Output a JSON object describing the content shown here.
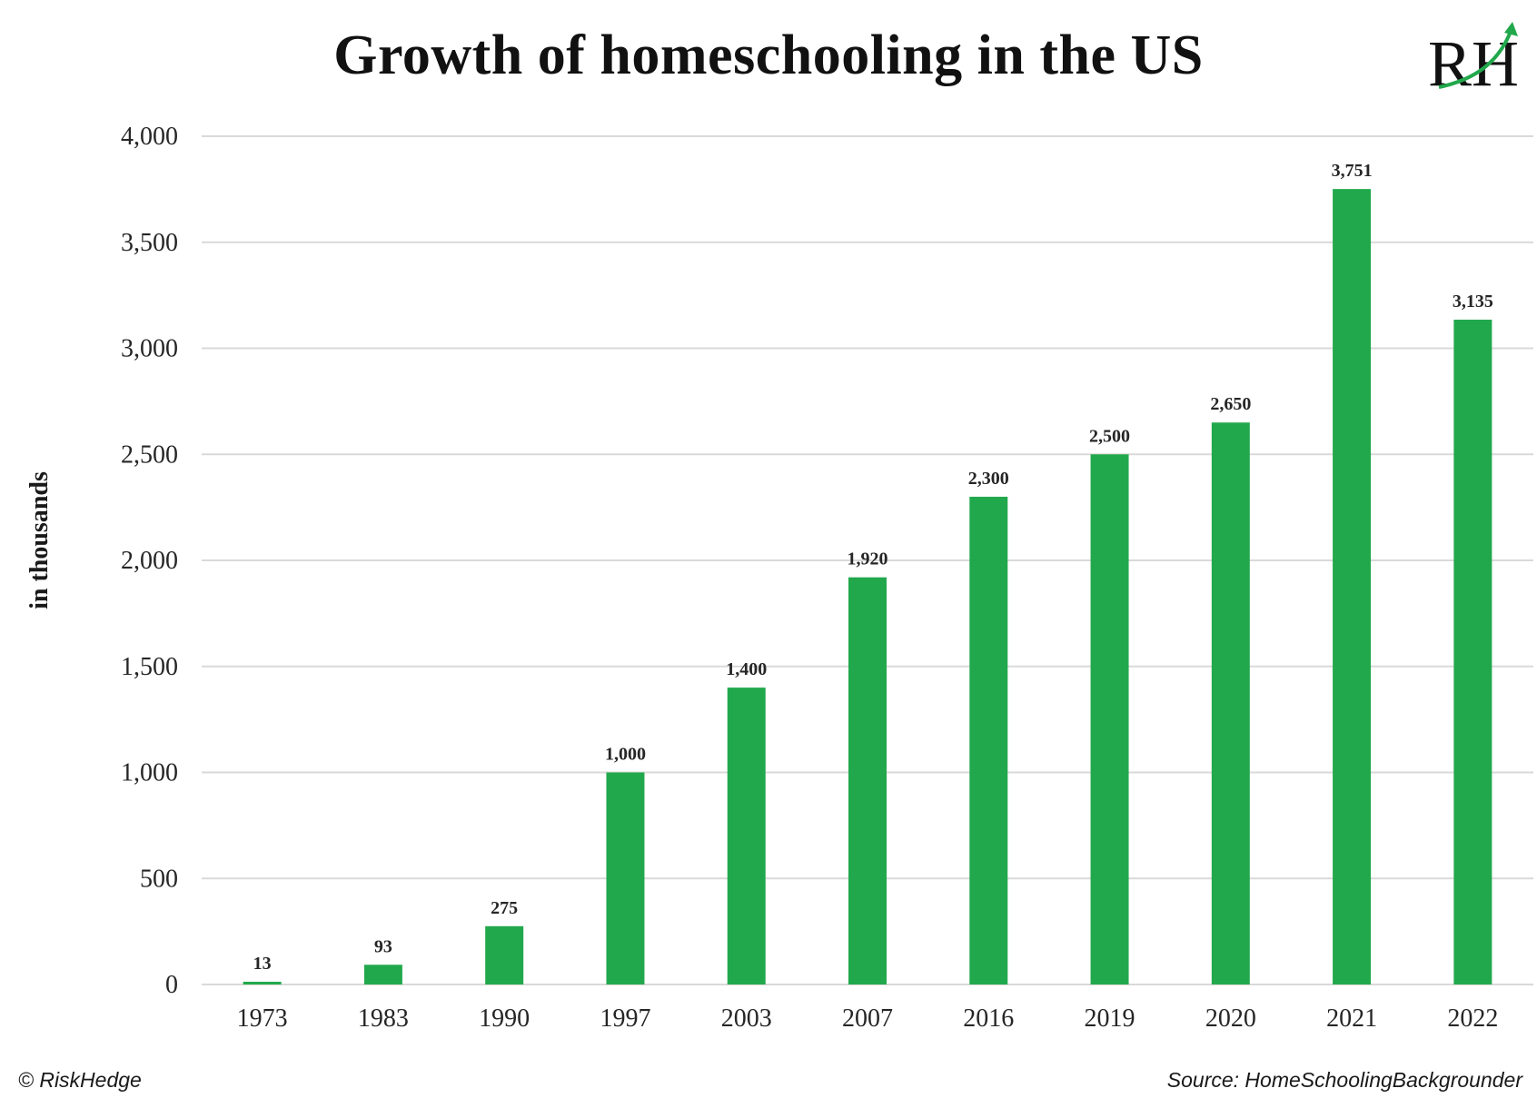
{
  "title": "Growth of homeschooling in the US",
  "logo_text": "RH",
  "footer": {
    "copyright": "© RiskHedge",
    "source": "Source: HomeSchoolingBackgrounder"
  },
  "colors": {
    "bar": "#22A84C",
    "gridline": "#D9D9D9",
    "logo_arrow": "#22A84C"
  },
  "chart_data": {
    "type": "bar",
    "title": "Growth of homeschooling in the US",
    "xlabel": "",
    "ylabel": "in thousands",
    "categories": [
      "1973",
      "1983",
      "1990",
      "1997",
      "2003",
      "2007",
      "2016",
      "2019",
      "2020",
      "2021",
      "2022"
    ],
    "values": [
      13,
      93,
      275,
      1000,
      1400,
      1920,
      2300,
      2500,
      2650,
      3751,
      3135
    ],
    "data_labels": [
      "13",
      "93",
      "275",
      "1,000",
      "1,400",
      "1,920",
      "2,300",
      "2,500",
      "2,650",
      "3,751",
      "3,135"
    ],
    "ylim": [
      0,
      4000
    ],
    "yticks": [
      0,
      500,
      1000,
      1500,
      2000,
      2500,
      3000,
      3500,
      4000
    ],
    "ytick_labels": [
      "0",
      "500",
      "1,000",
      "1,500",
      "2,000",
      "2,500",
      "3,000",
      "3,500",
      "4,000"
    ],
    "grid": true,
    "legend": "none"
  }
}
